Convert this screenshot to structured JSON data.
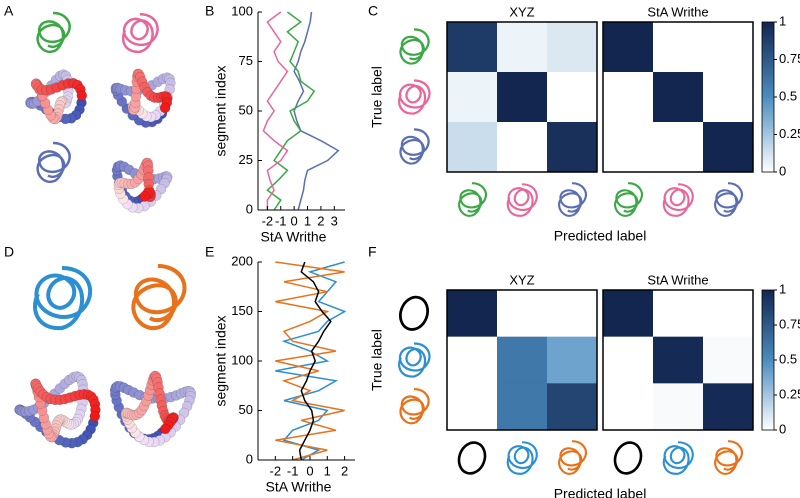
{
  "panel_labels": [
    "A",
    "B",
    "C",
    "D",
    "E",
    "F"
  ],
  "chart_data": [
    {
      "type": "line",
      "orientation": "vertical",
      "xlabel": "StA Writhe",
      "ylabel": "segment index",
      "y": [
        0,
        5,
        10,
        15,
        20,
        25,
        30,
        35,
        40,
        45,
        50,
        55,
        60,
        65,
        70,
        75,
        80,
        85,
        90,
        95,
        100
      ],
      "series": [
        {
          "color": "#5b6eb3",
          "values": [
            0.3,
            0.5,
            0.7,
            0.8,
            1.0,
            2.5,
            3.3,
            2.0,
            0.5,
            0.2,
            0.0,
            0.3,
            0.7,
            0.4,
            0.0,
            0.3,
            0.5,
            0.8,
            1.0,
            1.2,
            1.3
          ]
        },
        {
          "color": "#3aa845",
          "values": [
            -1.5,
            -1.0,
            -2.0,
            -1.2,
            -0.5,
            -1.5,
            -1.0,
            -0.5,
            0.5,
            0.0,
            -0.3,
            1.0,
            1.5,
            0.5,
            0.3,
            -0.3,
            0.0,
            0.3,
            -0.5,
            0.5,
            -0.5
          ]
        },
        {
          "color": "#e8669a",
          "values": [
            -2.0,
            -2.0,
            -1.5,
            -1.8,
            -2.0,
            -1.0,
            -0.5,
            -1.5,
            -2.3,
            -2.0,
            -1.5,
            -2.0,
            -1.5,
            -1.0,
            -0.5,
            -1.2,
            -1.5,
            -1.0,
            -1.5,
            -2.0,
            -1.0
          ]
        }
      ],
      "xlim": [
        -2.7,
        3.8
      ],
      "xticks": [
        -2,
        -1,
        0,
        1,
        2,
        3
      ],
      "ylim": [
        0,
        100
      ],
      "yticks": [
        0,
        25,
        50,
        75,
        100
      ]
    },
    {
      "type": "heatmap",
      "ylabel": "True label",
      "xlabel": "Predicted label",
      "matrices": [
        {
          "title": "XYZ",
          "values": [
            [
              0.9,
              0.05,
              0.1
            ],
            [
              0.05,
              1,
              0
            ],
            [
              0.15,
              0,
              0.95
            ]
          ]
        },
        {
          "title": "StA Writhe",
          "values": [
            [
              1,
              0,
              0
            ],
            [
              0,
              1,
              0
            ],
            [
              0,
              0,
              1
            ]
          ]
        }
      ],
      "colors": [
        "#ffffff",
        "#4a8cc0",
        "#13264f"
      ],
      "clim": [
        0,
        1
      ],
      "cticks": [
        0,
        0.25,
        0.5,
        0.75,
        1
      ]
    },
    {
      "type": "line",
      "orientation": "vertical",
      "xlabel": "StA Writhe",
      "ylabel": "segment index",
      "y": [
        0,
        10,
        20,
        30,
        40,
        50,
        60,
        70,
        80,
        90,
        100,
        110,
        120,
        130,
        140,
        150,
        160,
        170,
        180,
        190,
        200
      ],
      "series": [
        {
          "color": "#2b8fd1",
          "values": [
            -0.5,
            0.5,
            -1.5,
            -1,
            0.5,
            1,
            -1.5,
            0.5,
            1.5,
            -2,
            1,
            0,
            -1.5,
            0.5,
            1,
            2,
            0.5,
            1,
            1.5,
            0,
            2
          ]
        },
        {
          "color": "#e8721c",
          "values": [
            -1,
            1,
            -2,
            1.5,
            -0.5,
            2,
            -1,
            0,
            -1.5,
            0.5,
            -2,
            1.5,
            -1,
            -1.5,
            0,
            1,
            -2,
            1,
            -1.5,
            2,
            -2
          ]
        },
        {
          "color": "#000000",
          "values": [
            -0.5,
            -0.6,
            -0.3,
            0,
            0.2,
            0.1,
            -0.3,
            -0.5,
            -0.2,
            0,
            0.3,
            0.1,
            0.5,
            0.8,
            1.2,
            0.7,
            0.3,
            0.5,
            0.2,
            -0.5,
            -0.3
          ]
        }
      ],
      "xlim": [
        -3,
        2.6
      ],
      "xticks": [
        -2,
        -1,
        0,
        1,
        2
      ],
      "ylim": [
        0,
        200
      ],
      "yticks": [
        0,
        50,
        100,
        150,
        200
      ]
    },
    {
      "type": "heatmap",
      "ylabel": "True label",
      "xlabel": "Predicted label",
      "matrices": [
        {
          "title": "XYZ",
          "values": [
            [
              1,
              0,
              0
            ],
            [
              0,
              0.6,
              0.4
            ],
            [
              0,
              0.6,
              0.85
            ]
          ]
        },
        {
          "title": "StA Writhe",
          "values": [
            [
              1,
              0,
              0
            ],
            [
              0,
              0.98,
              0.02
            ],
            [
              0,
              0.02,
              0.98
            ]
          ]
        }
      ],
      "colors": [
        "#ffffff",
        "#4a8cc0",
        "#13264f"
      ],
      "clim": [
        0,
        1
      ],
      "cticks": [
        0,
        0.25,
        0.5,
        0.75,
        1
      ]
    }
  ]
}
